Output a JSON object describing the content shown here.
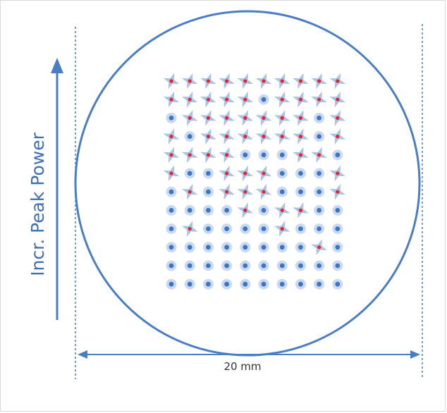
{
  "axis_label": "Incr. Peak Power",
  "dimension_label": "20 mm",
  "colors": {
    "line": "#4a7ec4",
    "spot_halo": "#c9daf0",
    "spot_core": "#3d74c4",
    "damage_star": "#a9c3e6",
    "damage_core": "#e8242a"
  },
  "grid": {
    "rows": 12,
    "cols": 10,
    "legend": "D = damaged spot (star with red core), o = intact spot (blue dot); top row = highest peak power",
    "pattern": [
      "DDDDDDDDDD",
      "DDDDDoDDDD",
      "oDDDDDDDoD",
      "DoDDDDDDoD",
      "DDDDoooDDo",
      "DooDDDoooD",
      "oDoDDDoooD",
      "ooooDoDDoo",
      "oDooooDooo",
      "ooooooooDo",
      "oooooooooo",
      "oooooooooo"
    ]
  }
}
